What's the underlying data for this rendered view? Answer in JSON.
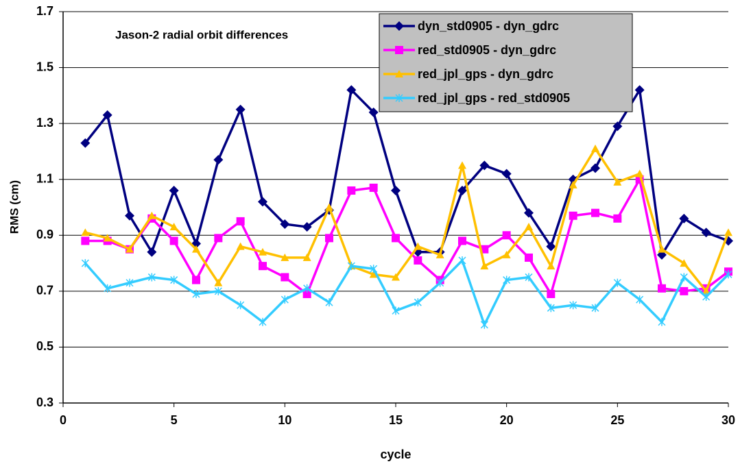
{
  "chart_data": {
    "type": "line",
    "annotation": "Jason-2 radial orbit differences",
    "xlabel": "cycle",
    "ylabel": "RMS (cm)",
    "x": [
      1,
      2,
      3,
      4,
      5,
      6,
      7,
      8,
      9,
      10,
      11,
      12,
      13,
      14,
      15,
      16,
      17,
      18,
      19,
      20,
      21,
      22,
      23,
      24,
      25,
      26,
      27,
      28,
      29,
      30
    ],
    "series": [
      {
        "name": "dyn_std0905 - dyn_gdrc",
        "color": "#000080",
        "marker": "diamond",
        "values": [
          1.23,
          1.33,
          0.97,
          0.84,
          1.06,
          0.87,
          1.17,
          1.35,
          1.02,
          0.94,
          0.93,
          0.99,
          1.42,
          1.34,
          1.06,
          0.84,
          0.84,
          1.06,
          1.15,
          1.12,
          0.98,
          0.86,
          1.1,
          1.14,
          1.29,
          1.42,
          0.83,
          0.96,
          0.91,
          0.88
        ]
      },
      {
        "name": "red_std0905 - dyn_gdrc",
        "color": "#ff00ff",
        "marker": "square",
        "values": [
          0.88,
          0.88,
          0.85,
          0.96,
          0.88,
          0.74,
          0.89,
          0.95,
          0.79,
          0.75,
          0.69,
          0.89,
          1.06,
          1.07,
          0.89,
          0.81,
          0.74,
          0.88,
          0.85,
          0.9,
          0.82,
          0.69,
          0.97,
          0.98,
          0.96,
          1.1,
          0.71,
          0.7,
          0.71,
          0.77
        ]
      },
      {
        "name": "red_jpl_gps - dyn_gdrc",
        "color": "#ffc000",
        "marker": "triangle",
        "values": [
          0.91,
          0.89,
          0.85,
          0.97,
          0.93,
          0.85,
          0.73,
          0.86,
          0.84,
          0.82,
          0.82,
          1.0,
          0.79,
          0.76,
          0.75,
          0.86,
          0.83,
          1.15,
          0.79,
          0.83,
          0.93,
          0.79,
          1.08,
          1.21,
          1.09,
          1.12,
          0.85,
          0.8,
          0.7,
          0.91
        ]
      },
      {
        "name": "red_jpl_gps - red_std0905",
        "color": "#33ccff",
        "marker": "star",
        "values": [
          0.8,
          0.71,
          0.73,
          0.75,
          0.74,
          0.69,
          0.7,
          0.65,
          0.59,
          0.67,
          0.71,
          0.66,
          0.79,
          0.78,
          0.63,
          0.66,
          0.73,
          0.81,
          0.58,
          0.74,
          0.75,
          0.64,
          0.65,
          0.64,
          0.73,
          0.67,
          0.59,
          0.75,
          0.68,
          0.76
        ]
      }
    ],
    "xlim": [
      0,
      30
    ],
    "xticks": [
      0,
      5,
      10,
      15,
      20,
      25,
      30
    ],
    "ylim": [
      0.3,
      1.7
    ],
    "yticks": [
      0.3,
      0.5,
      0.7,
      0.9,
      1.1,
      1.3,
      1.5,
      1.7
    ],
    "grid": true,
    "legend": "top right"
  }
}
